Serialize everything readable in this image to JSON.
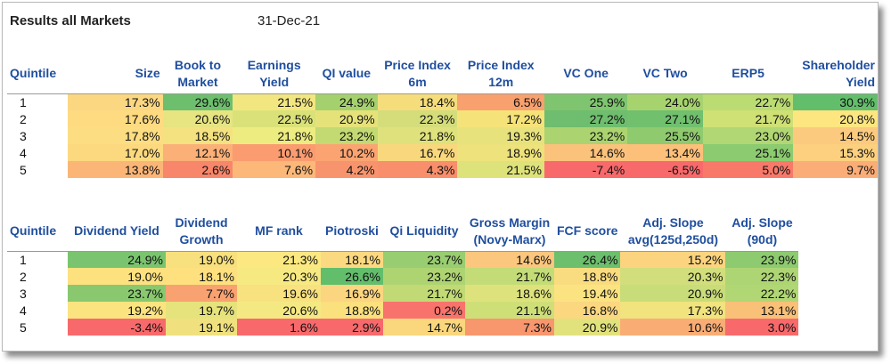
{
  "title": "Results all Markets",
  "date": "31-Dec-21",
  "table1": {
    "headers": [
      "Quintile",
      "Size",
      "Book to Market",
      "Earnings Yield",
      "QI value",
      "Price Index 6m",
      "Price Index 12m",
      "VC One",
      "VC Two",
      "ERP5",
      "Shareholder Yield"
    ],
    "rows": [
      {
        "q": "1",
        "cells": [
          {
            "v": "17.3%",
            "c": "#fcd781"
          },
          {
            "v": "29.6%",
            "c": "#6dbf6d"
          },
          {
            "v": "21.5%",
            "c": "#f2e680"
          },
          {
            "v": "24.9%",
            "c": "#a5d06e"
          },
          {
            "v": "18.4%",
            "c": "#f6dd7b"
          },
          {
            "v": "6.5%",
            "c": "#f8a16f"
          },
          {
            "v": "25.9%",
            "c": "#7fc56f"
          },
          {
            "v": "24.0%",
            "c": "#a7d36f"
          },
          {
            "v": "22.7%",
            "c": "#badc73"
          },
          {
            "v": "30.9%",
            "c": "#63be6c"
          }
        ]
      },
      {
        "q": "2",
        "cells": [
          {
            "v": "17.6%",
            "c": "#fedb81"
          },
          {
            "v": "20.6%",
            "c": "#e7e482"
          },
          {
            "v": "22.5%",
            "c": "#dae179"
          },
          {
            "v": "20.9%",
            "c": "#e5e27a"
          },
          {
            "v": "22.3%",
            "c": "#d5dd7b"
          },
          {
            "v": "17.2%",
            "c": "#f5e379"
          },
          {
            "v": "27.2%",
            "c": "#6fbd6e"
          },
          {
            "v": "27.1%",
            "c": "#70c06e"
          },
          {
            "v": "21.7%",
            "c": "#cfe075"
          },
          {
            "v": "20.8%",
            "c": "#fde680"
          }
        ]
      },
      {
        "q": "3",
        "cells": [
          {
            "v": "17.8%",
            "c": "#fcdd82"
          },
          {
            "v": "18.5%",
            "c": "#f4e180"
          },
          {
            "v": "21.8%",
            "c": "#ecec80"
          },
          {
            "v": "23.2%",
            "c": "#c3d972"
          },
          {
            "v": "21.8%",
            "c": "#dfe27c"
          },
          {
            "v": "19.3%",
            "c": "#e7e27c"
          },
          {
            "v": "23.2%",
            "c": "#abd470"
          },
          {
            "v": "25.5%",
            "c": "#8fca6e"
          },
          {
            "v": "23.0%",
            "c": "#b1d774"
          },
          {
            "v": "14.5%",
            "c": "#fbca7f"
          }
        ]
      },
      {
        "q": "4",
        "cells": [
          {
            "v": "17.0%",
            "c": "#fcd97f"
          },
          {
            "v": "12.1%",
            "c": "#fbb078"
          },
          {
            "v": "10.1%",
            "c": "#fa9c70"
          },
          {
            "v": "10.2%",
            "c": "#fba471"
          },
          {
            "v": "16.7%",
            "c": "#f9d87d"
          },
          {
            "v": "18.9%",
            "c": "#ede27b"
          },
          {
            "v": "14.6%",
            "c": "#fbc27c"
          },
          {
            "v": "13.4%",
            "c": "#fcc07a"
          },
          {
            "v": "25.1%",
            "c": "#8ccb6f"
          },
          {
            "v": "15.3%",
            "c": "#fcd07e"
          }
        ]
      },
      {
        "q": "5",
        "cells": [
          {
            "v": "13.8%",
            "c": "#fbb677"
          },
          {
            "v": "2.6%",
            "c": "#f8866a"
          },
          {
            "v": "7.6%",
            "c": "#fbb879"
          },
          {
            "v": "4.2%",
            "c": "#f8946d"
          },
          {
            "v": "4.3%",
            "c": "#f88e6b"
          },
          {
            "v": "21.5%",
            "c": "#dee27b"
          },
          {
            "v": "-7.4%",
            "c": "#f8696b"
          },
          {
            "v": "-6.5%",
            "c": "#f8696b"
          },
          {
            "v": "5.0%",
            "c": "#f8796a"
          },
          {
            "v": "9.7%",
            "c": "#fbad77"
          }
        ]
      }
    ]
  },
  "table2": {
    "headers": [
      "Quintile",
      "Dividend Yield",
      "Dividend Growth",
      "MF rank",
      "Piotroski",
      "Qi Liquidity",
      "Gross Margin (Novy-Marx)",
      "FCF score",
      "Adj. Slope avg(125d,250d)",
      "Adj. Slope (90d)"
    ],
    "rows": [
      {
        "q": "1",
        "cells": [
          {
            "v": "24.9%",
            "c": "#7ac46f"
          },
          {
            "v": "19.0%",
            "c": "#f7e07d"
          },
          {
            "v": "21.3%",
            "c": "#fbe881"
          },
          {
            "v": "18.1%",
            "c": "#fbd981"
          },
          {
            "v": "23.7%",
            "c": "#99cd71"
          },
          {
            "v": "14.6%",
            "c": "#fbc67d"
          },
          {
            "v": "26.4%",
            "c": "#6cbf6d"
          },
          {
            "v": "15.2%",
            "c": "#fcd47f"
          },
          {
            "v": "23.9%",
            "c": "#8ecb70"
          }
        ]
      },
      {
        "q": "2",
        "cells": [
          {
            "v": "19.0%",
            "c": "#fde17f"
          },
          {
            "v": "18.1%",
            "c": "#fee07f"
          },
          {
            "v": "20.3%",
            "c": "#f6e982"
          },
          {
            "v": "26.6%",
            "c": "#63be6c"
          },
          {
            "v": "23.2%",
            "c": "#aed472"
          },
          {
            "v": "21.7%",
            "c": "#c3dc77"
          },
          {
            "v": "18.8%",
            "c": "#f9dc7f"
          },
          {
            "v": "20.3%",
            "c": "#d2de7b"
          },
          {
            "v": "22.3%",
            "c": "#aed574"
          }
        ]
      },
      {
        "q": "3",
        "cells": [
          {
            "v": "23.7%",
            "c": "#89c86f"
          },
          {
            "v": "7.7%",
            "c": "#f9a271"
          },
          {
            "v": "19.6%",
            "c": "#f8e17f"
          },
          {
            "v": "16.9%",
            "c": "#fbd580"
          },
          {
            "v": "21.7%",
            "c": "#c1da75"
          },
          {
            "v": "18.6%",
            "c": "#dee27c"
          },
          {
            "v": "19.4%",
            "c": "#fbe381"
          },
          {
            "v": "20.9%",
            "c": "#c9dc7a"
          },
          {
            "v": "22.2%",
            "c": "#b1d774"
          }
        ]
      },
      {
        "q": "4",
        "cells": [
          {
            "v": "19.2%",
            "c": "#fbe480"
          },
          {
            "v": "19.7%",
            "c": "#e6e27c"
          },
          {
            "v": "20.6%",
            "c": "#f4e882"
          },
          {
            "v": "18.8%",
            "c": "#fbe07e"
          },
          {
            "v": "0.2%",
            "c": "#f8736b"
          },
          {
            "v": "21.1%",
            "c": "#cfdf78"
          },
          {
            "v": "16.8%",
            "c": "#fbd780"
          },
          {
            "v": "17.3%",
            "c": "#f1e37e"
          },
          {
            "v": "13.1%",
            "c": "#f9c078"
          }
        ]
      },
      {
        "q": "5",
        "cells": [
          {
            "v": "-3.4%",
            "c": "#f8696b"
          },
          {
            "v": "19.1%",
            "c": "#f0e17e"
          },
          {
            "v": "1.6%",
            "c": "#f8696b"
          },
          {
            "v": "2.9%",
            "c": "#f8696b"
          },
          {
            "v": "14.7%",
            "c": "#fad77d"
          },
          {
            "v": "7.3%",
            "c": "#f8966d"
          },
          {
            "v": "20.9%",
            "c": "#e2e27d"
          },
          {
            "v": "10.6%",
            "c": "#f9ad74"
          },
          {
            "v": "3.0%",
            "c": "#f8696b"
          }
        ]
      }
    ]
  }
}
